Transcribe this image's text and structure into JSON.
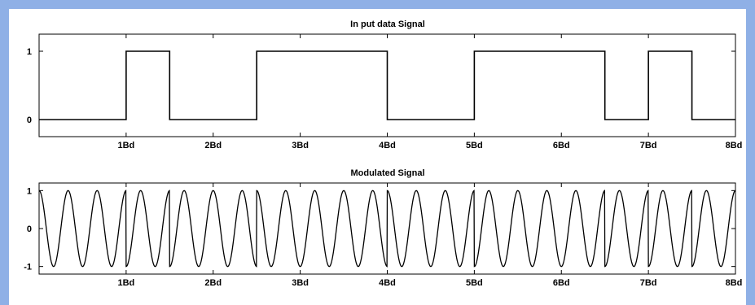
{
  "colors": {
    "frame": "#8fb0e6",
    "axes": "#000000",
    "line": "#000000",
    "background": "#ffffff"
  },
  "chart_data": [
    {
      "type": "line",
      "title": "In put data Signal",
      "xlabel": "",
      "ylabel": "",
      "step": true,
      "xlim": [
        0,
        8
      ],
      "ylim": [
        -0.25,
        1.25
      ],
      "x_ticks": [
        1,
        2,
        3,
        4,
        5,
        6,
        7,
        8
      ],
      "x_tick_labels": [
        "1Bd",
        "2Bd",
        "3Bd",
        "4Bd",
        "5Bd",
        "6Bd",
        "7Bd",
        "8Bd"
      ],
      "y_ticks": [
        0,
        1
      ],
      "y_tick_labels": [
        "0",
        "1"
      ],
      "grid": false,
      "series": [
        {
          "x": [
            0,
            1,
            1,
            1.5,
            1.5,
            2.5,
            2.5,
            4,
            4,
            5,
            5,
            6.5,
            6.5,
            7,
            7,
            7.5,
            7.5,
            8
          ],
          "y": [
            0,
            0,
            1,
            1,
            0,
            0,
            1,
            1,
            0,
            0,
            1,
            1,
            0,
            0,
            1,
            1,
            0,
            0
          ]
        }
      ]
    },
    {
      "type": "line",
      "title": "Modulated Signal",
      "xlabel": "",
      "ylabel": "",
      "xlim": [
        0,
        8
      ],
      "ylim": [
        -1.2,
        1.2
      ],
      "x_ticks": [
        1,
        2,
        3,
        4,
        5,
        6,
        7,
        8
      ],
      "x_tick_labels": [
        "1Bd",
        "2Bd",
        "3Bd",
        "4Bd",
        "5Bd",
        "6Bd",
        "7Bd",
        "8Bd"
      ],
      "y_ticks": [
        -1,
        0,
        1
      ],
      "y_tick_labels": [
        "-1",
        "0",
        "1"
      ],
      "grid": false,
      "carrier_cycles_per_bd": 3,
      "series": [
        {
          "function": "cos(2*pi*3*x + pi*b(x))",
          "phase_bits": "b(x) = input data signal",
          "amplitude": 1
        }
      ]
    }
  ]
}
